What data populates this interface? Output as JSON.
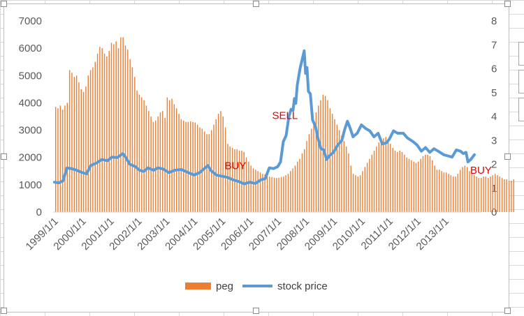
{
  "chart_data": {
    "type": "bar+line",
    "title": "",
    "xlabel": "",
    "ylabel": "",
    "y_left": {
      "min": 0,
      "max": 7000,
      "ticks": [
        0,
        1000,
        2000,
        3000,
        4000,
        5000,
        6000,
        7000
      ]
    },
    "y_right": {
      "min": 0,
      "max": 8,
      "ticks": [
        0,
        1,
        2,
        3,
        4,
        5,
        6,
        7,
        8
      ]
    },
    "x_range": [
      1999.0,
      2014.3
    ],
    "x_tick_labels": [
      "1999/1/1",
      "2000/1/1",
      "2001/1/1",
      "2002/1/1",
      "2003/1/1",
      "2004/1/1",
      "2005/1/1",
      "2006/1/1",
      "2007/1/1",
      "2008/1/1",
      "2009/1/1",
      "2010/1/1",
      "2011/1/1",
      "2012/1/1",
      "2013/1/1"
    ],
    "series": [
      {
        "name": "peg",
        "kind": "bar",
        "axis": "left",
        "color": "#ED7D31",
        "frequency": "monthly",
        "start": "1999-01",
        "values": [
          3850,
          3800,
          3900,
          3750,
          3900,
          4000,
          5200,
          5100,
          4950,
          5000,
          4750,
          4500,
          4400,
          4600,
          5000,
          5200,
          5300,
          5500,
          5800,
          6050,
          6000,
          5800,
          5700,
          5900,
          6200,
          6150,
          6250,
          6000,
          6400,
          6400,
          6100,
          5950,
          5600,
          5300,
          4950,
          4450,
          4300,
          4200,
          4100,
          3900,
          3700,
          3500,
          3300,
          3350,
          3500,
          3650,
          3700,
          3450,
          4200,
          4100,
          4150,
          3950,
          3800,
          3600,
          3400,
          3350,
          3300,
          3300,
          3320,
          3300,
          3280,
          3200,
          3100,
          3050,
          2950,
          2850,
          2850,
          3000,
          3200,
          3400,
          3600,
          3700,
          3500,
          3100,
          2500,
          2400,
          2350,
          2300,
          2300,
          2250,
          2250,
          2200,
          2000,
          1850,
          1700,
          1600,
          1550,
          1500,
          1450,
          1400,
          1380,
          1350,
          1300,
          1280,
          1260,
          1250,
          1260,
          1280,
          1300,
          1350,
          1400,
          1500,
          1600,
          1700,
          1850,
          1950,
          2150,
          2300,
          2600,
          2850,
          3050,
          3300,
          3650,
          3900,
          4100,
          4300,
          4250,
          4100,
          3800,
          3600,
          3400,
          3200,
          3000,
          2800,
          2600,
          2400,
          2150,
          1700,
          1400,
          1350,
          1300,
          1350,
          1500,
          1650,
          1800,
          1950,
          2100,
          2250,
          2400,
          2550,
          2650,
          2700,
          2750,
          2650,
          2500,
          2350,
          2250,
          2200,
          2250,
          2200,
          2100,
          2000,
          1950,
          1900,
          1850,
          1800,
          1850,
          1950,
          2050,
          2100,
          2100,
          2050,
          1900,
          1700,
          1550,
          1550,
          1500,
          1450,
          1450,
          1400,
          1350,
          1300,
          1300,
          1400,
          1550,
          1650,
          1700,
          1650,
          1500,
          1400,
          1350,
          1300,
          1250,
          1250,
          1300,
          1300,
          1250,
          1300,
          1350,
          1400,
          1350,
          1300,
          1250,
          1200,
          1200,
          1150,
          1150,
          1200
        ]
      },
      {
        "name": "stock price",
        "kind": "line",
        "axis": "right",
        "color": "#5B9BD5",
        "points": [
          [
            1999.0,
            1.25
          ],
          [
            1999.15,
            1.22
          ],
          [
            1999.3,
            1.3
          ],
          [
            1999.45,
            1.85
          ],
          [
            1999.6,
            1.82
          ],
          [
            1999.8,
            1.75
          ],
          [
            2000.0,
            1.65
          ],
          [
            2000.15,
            1.6
          ],
          [
            2000.3,
            1.95
          ],
          [
            2000.5,
            2.05
          ],
          [
            2000.7,
            2.2
          ],
          [
            2000.9,
            2.15
          ],
          [
            2001.05,
            2.3
          ],
          [
            2001.25,
            2.28
          ],
          [
            2001.45,
            2.45
          ],
          [
            2001.55,
            2.3
          ],
          [
            2001.7,
            2.0
          ],
          [
            2001.9,
            1.9
          ],
          [
            2002.05,
            1.75
          ],
          [
            2002.2,
            1.7
          ],
          [
            2002.35,
            1.85
          ],
          [
            2002.55,
            1.75
          ],
          [
            2002.7,
            1.85
          ],
          [
            2002.9,
            1.8
          ],
          [
            2003.1,
            1.65
          ],
          [
            2003.3,
            1.75
          ],
          [
            2003.55,
            1.78
          ],
          [
            2003.8,
            1.65
          ],
          [
            2004.0,
            1.55
          ],
          [
            2004.2,
            1.65
          ],
          [
            2004.4,
            1.85
          ],
          [
            2004.5,
            1.95
          ],
          [
            2004.6,
            1.75
          ],
          [
            2004.8,
            1.55
          ],
          [
            2005.0,
            1.5
          ],
          [
            2005.2,
            1.45
          ],
          [
            2005.4,
            1.35
          ],
          [
            2005.6,
            1.28
          ],
          [
            2005.8,
            1.18
          ],
          [
            2006.0,
            1.25
          ],
          [
            2006.2,
            1.2
          ],
          [
            2006.4,
            1.35
          ],
          [
            2006.55,
            1.4
          ],
          [
            2006.7,
            1.85
          ],
          [
            2006.85,
            1.82
          ],
          [
            2007.0,
            1.9
          ],
          [
            2007.1,
            2.1
          ],
          [
            2007.2,
            2.95
          ],
          [
            2007.3,
            3.2
          ],
          [
            2007.4,
            4.0
          ],
          [
            2007.48,
            4.3
          ],
          [
            2007.55,
            4.25
          ],
          [
            2007.6,
            4.75
          ],
          [
            2007.65,
            4.55
          ],
          [
            2007.7,
            5.3
          ],
          [
            2007.8,
            6.0
          ],
          [
            2007.88,
            6.4
          ],
          [
            2007.95,
            6.75
          ],
          [
            2008.0,
            5.8
          ],
          [
            2008.05,
            6.05
          ],
          [
            2008.1,
            5.05
          ],
          [
            2008.17,
            4.95
          ],
          [
            2008.25,
            3.85
          ],
          [
            2008.35,
            3.6
          ],
          [
            2008.45,
            3.05
          ],
          [
            2008.55,
            2.65
          ],
          [
            2008.65,
            2.6
          ],
          [
            2008.75,
            2.2
          ],
          [
            2008.85,
            2.35
          ],
          [
            2009.0,
            2.5
          ],
          [
            2009.15,
            2.8
          ],
          [
            2009.3,
            3.0
          ],
          [
            2009.4,
            3.45
          ],
          [
            2009.5,
            3.8
          ],
          [
            2009.6,
            3.5
          ],
          [
            2009.7,
            3.15
          ],
          [
            2009.85,
            3.3
          ],
          [
            2010.0,
            3.65
          ],
          [
            2010.15,
            3.5
          ],
          [
            2010.3,
            3.4
          ],
          [
            2010.45,
            3.15
          ],
          [
            2010.6,
            3.3
          ],
          [
            2010.75,
            2.85
          ],
          [
            2010.9,
            2.9
          ],
          [
            2011.0,
            3.05
          ],
          [
            2011.15,
            3.4
          ],
          [
            2011.3,
            3.3
          ],
          [
            2011.5,
            3.3
          ],
          [
            2011.65,
            3.1
          ],
          [
            2011.85,
            2.95
          ],
          [
            2012.0,
            2.8
          ],
          [
            2012.15,
            2.55
          ],
          [
            2012.3,
            2.7
          ],
          [
            2012.45,
            2.5
          ],
          [
            2012.6,
            2.65
          ],
          [
            2012.75,
            2.55
          ],
          [
            2012.95,
            2.4
          ],
          [
            2013.1,
            2.35
          ],
          [
            2013.25,
            2.3
          ],
          [
            2013.4,
            2.6
          ],
          [
            2013.55,
            2.55
          ],
          [
            2013.65,
            2.45
          ],
          [
            2013.75,
            2.5
          ],
          [
            2013.82,
            2.1
          ],
          [
            2013.92,
            2.2
          ],
          [
            2014.05,
            2.4
          ]
        ]
      }
    ],
    "annotations": [
      {
        "text": "BUY",
        "x": 2005.1,
        "y_right": 1.8,
        "color": "#E00000"
      },
      {
        "text": "SELL",
        "x": 2006.8,
        "y_right": 3.9,
        "color": "#E00000"
      },
      {
        "text": "BUY",
        "x": 2013.9,
        "y_right": 1.6,
        "color": "#E00000"
      }
    ],
    "legend": {
      "position": "bottom",
      "entries": [
        "peg",
        "stock price"
      ]
    },
    "grid": false
  }
}
